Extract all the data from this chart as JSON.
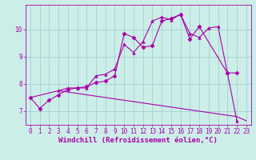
{
  "xlabel": "Windchill (Refroidissement éolien,°C)",
  "bg_color": "#cceee8",
  "line_color": "#aa00aa",
  "xlim": [
    -0.5,
    23.5
  ],
  "ylim": [
    6.5,
    10.9
  ],
  "xticks": [
    0,
    1,
    2,
    3,
    4,
    5,
    6,
    7,
    8,
    9,
    10,
    11,
    12,
    13,
    14,
    15,
    16,
    17,
    18,
    19,
    20,
    21,
    22,
    23
  ],
  "yticks": [
    7,
    8,
    9,
    10
  ],
  "series": [
    {
      "x": [
        0,
        1,
        2,
        3,
        4,
        5,
        6,
        7,
        8,
        9,
        10,
        11,
        12,
        13,
        14,
        15,
        16,
        17,
        18,
        21,
        22
      ],
      "y": [
        7.5,
        7.1,
        7.4,
        7.6,
        7.8,
        7.85,
        7.9,
        8.05,
        8.1,
        8.3,
        9.85,
        9.7,
        9.35,
        9.4,
        10.3,
        10.4,
        10.55,
        9.65,
        10.1,
        8.4,
        8.4
      ],
      "marker": "D",
      "ms": 2.5,
      "lw": 0.8
    },
    {
      "x": [
        3,
        4,
        5,
        6,
        7,
        8,
        9,
        10,
        11,
        12,
        13,
        14,
        15,
        16,
        17,
        18,
        19,
        20,
        21,
        22
      ],
      "y": [
        7.75,
        7.85,
        7.85,
        7.85,
        8.3,
        8.35,
        8.55,
        9.45,
        9.15,
        9.55,
        10.3,
        10.45,
        10.35,
        10.55,
        9.85,
        9.7,
        10.05,
        10.1,
        8.4,
        6.65
      ],
      "marker": "^",
      "ms": 2.5,
      "lw": 0.8
    },
    {
      "x": [
        0,
        3,
        4,
        5,
        6,
        7,
        8,
        9,
        10,
        11,
        12,
        13,
        14,
        15,
        16,
        17,
        18,
        19,
        20,
        21,
        22,
        23
      ],
      "y": [
        7.5,
        7.75,
        7.7,
        7.65,
        7.6,
        7.55,
        7.5,
        7.45,
        7.4,
        7.35,
        7.3,
        7.25,
        7.2,
        7.15,
        7.1,
        7.05,
        7.0,
        6.95,
        6.9,
        6.85,
        6.8,
        6.65
      ],
      "marker": null,
      "ms": 0,
      "lw": 0.8
    }
  ],
  "grid_color": "#99cccc",
  "label_fontsize": 6.5,
  "tick_fontsize": 5.5,
  "label_color": "#aa00aa",
  "tick_color": "#aa00aa",
  "spine_color": "#aa00aa"
}
